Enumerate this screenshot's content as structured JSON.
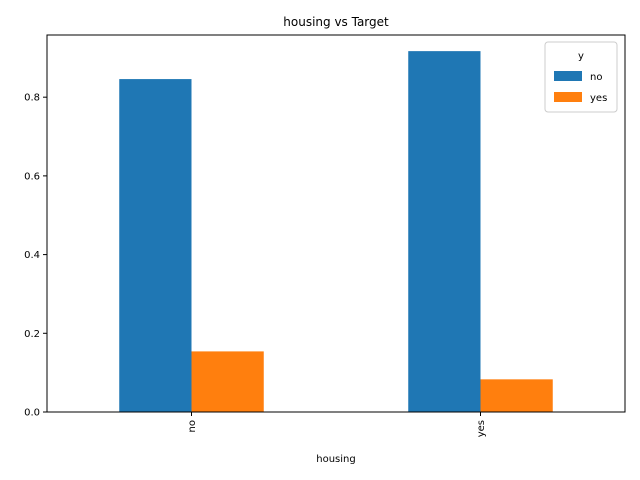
{
  "chart_data": {
    "type": "bar",
    "title": "housing vs Target",
    "xlabel": "housing",
    "ylabel": "",
    "categories": [
      "no",
      "yes"
    ],
    "series": [
      {
        "name": "no",
        "values": [
          0.846,
          0.917
        ],
        "color": "#1f77b4"
      },
      {
        "name": "yes",
        "values": [
          0.154,
          0.083
        ],
        "color": "#ff7f0e"
      }
    ],
    "ylim": [
      0,
      0.958
    ],
    "yticks": [
      0.0,
      0.2,
      0.4,
      0.6,
      0.8
    ],
    "ytick_labels": [
      "0.0",
      "0.2",
      "0.4",
      "0.6",
      "0.8"
    ],
    "legend": {
      "title": "y",
      "placement": "top-right"
    },
    "grid": false
  }
}
